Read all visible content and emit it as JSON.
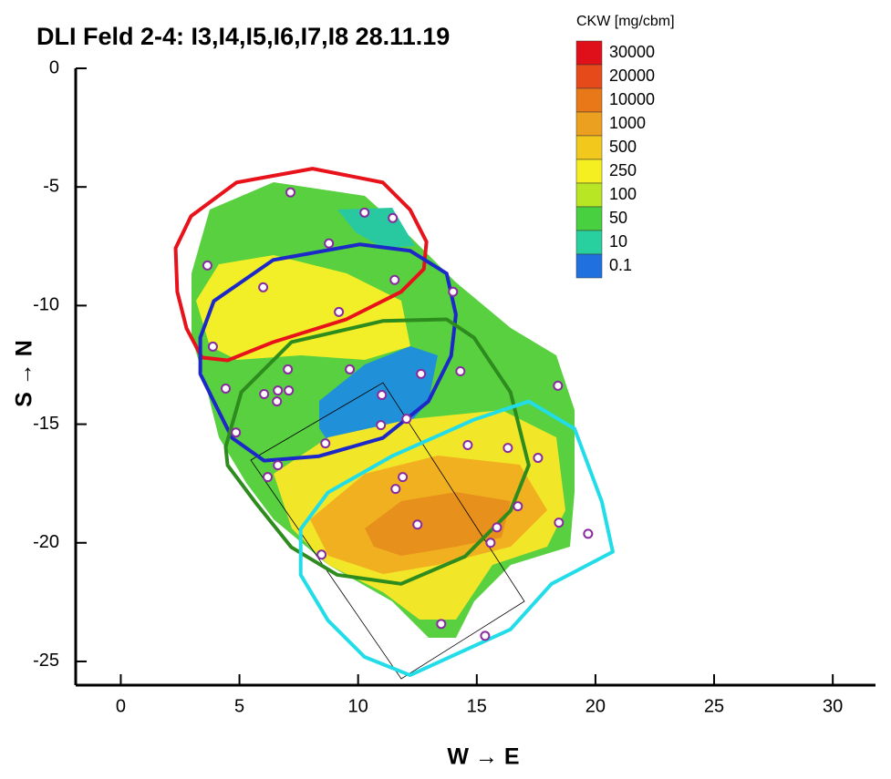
{
  "chart_data": {
    "type": "contour",
    "title": "DLI Feld 2-4: I3,I4,I5,I6,I7,I8 28.11.19",
    "x_label": "W → E",
    "y_label": "S → N",
    "xlim": [
      -1.9,
      31.8
    ],
    "ylim": [
      -26,
      0
    ],
    "xticks": [
      0,
      5,
      10,
      15,
      20,
      25,
      30
    ],
    "yticks": [
      0,
      -5,
      -10,
      -15,
      -20,
      -25
    ],
    "legend": {
      "title": "CKW [mg/cbm]",
      "position": "top-right",
      "levels": [
        30000,
        20000,
        10000,
        1000,
        500,
        250,
        100,
        50,
        10,
        0.1
      ],
      "colors": [
        "#e0101a",
        "#e64a1a",
        "#e87818",
        "#eca020",
        "#f2c81c",
        "#f5ee20",
        "#b8e624",
        "#48d040",
        "#28d0a0",
        "#2070e0"
      ]
    },
    "outlines": [
      {
        "color": "#e8121b",
        "x": [
          2.31,
          2.96,
          4.88,
          8.08,
          11.04,
          12.19,
          12.88,
          12.77,
          11.81,
          9.5,
          6.42,
          4.5,
          3.42,
          2.77,
          2.38
        ],
        "y": [
          -7.58,
          -6.23,
          -4.81,
          -4.23,
          -4.81,
          -5.96,
          -7.31,
          -8.46,
          -9.42,
          -10.58,
          -11.54,
          -12.31,
          -12.19,
          -10.96,
          -9.42
        ]
      },
      {
        "color": "#1c28c8",
        "x": [
          3.35,
          3.92,
          6.42,
          10.08,
          12.19,
          13.73,
          14.12,
          13.92,
          12.96,
          11.04,
          8.35,
          6.04,
          4.69,
          3.92,
          3.35
        ],
        "y": [
          -11.35,
          -9.81,
          -8.08,
          -7.42,
          -7.69,
          -8.65,
          -10.38,
          -12.12,
          -14.04,
          -15.58,
          -16.35,
          -16.54,
          -15.58,
          -14.04,
          -12.88
        ]
      },
      {
        "color": "#2e8b1e",
        "x": [
          4.42,
          5.08,
          7.19,
          11.04,
          13.73,
          14.88,
          16.42,
          17.19,
          16.42,
          14.5,
          11.81,
          9.12,
          7.19,
          5.65,
          4.5
        ],
        "y": [
          -15.96,
          -13.65,
          -11.54,
          -10.65,
          -10.58,
          -11.35,
          -13.65,
          -16.73,
          -18.65,
          -20.58,
          -21.73,
          -21.35,
          -20.19,
          -18.27,
          -16.73
        ]
      },
      {
        "color": "#22dde8",
        "x": [
          7.58,
          8.73,
          11.42,
          14.88,
          17.19,
          19.12,
          20.27,
          20.73,
          18.15,
          16.42,
          12.19,
          10.27,
          8.73,
          7.58
        ],
        "y": [
          -19.42,
          -17.88,
          -16.35,
          -14.81,
          -14.04,
          -15.19,
          -18.27,
          -20.38,
          -21.73,
          -23.65,
          -25.58,
          -24.81,
          -23.27,
          -21.35
        ]
      }
    ],
    "points": {
      "color": "#8a2aa0",
      "x": [
        7.15,
        10.27,
        11.46,
        8.77,
        3.65,
        6.0,
        11.54,
        14.0,
        9.19,
        3.88,
        7.04,
        9.65,
        12.65,
        14.31,
        18.42,
        4.42,
        6.04,
        6.62,
        7.08,
        11.0,
        6.58,
        12.04,
        10.96,
        4.85,
        8.62,
        14.62,
        16.31,
        17.58,
        6.62,
        6.19,
        11.88,
        11.58,
        16.73,
        12.5,
        15.85,
        18.46,
        19.69,
        15.58,
        8.46,
        13.5,
        15.35
      ],
      "y": [
        -5.23,
        -6.08,
        -6.31,
        -7.38,
        -8.31,
        -9.23,
        -8.92,
        -9.42,
        -10.27,
        -11.73,
        -12.69,
        -12.69,
        -12.88,
        -12.77,
        -13.38,
        -13.5,
        -13.73,
        -13.58,
        -13.58,
        -13.77,
        -14.04,
        -14.77,
        -15.04,
        -15.35,
        -15.81,
        -15.88,
        -16.0,
        -16.42,
        -16.73,
        -17.23,
        -17.23,
        -17.73,
        -18.46,
        -19.23,
        -19.35,
        -19.15,
        -19.62,
        -20.0,
        -20.5,
        -23.42,
        -23.92
      ]
    }
  }
}
